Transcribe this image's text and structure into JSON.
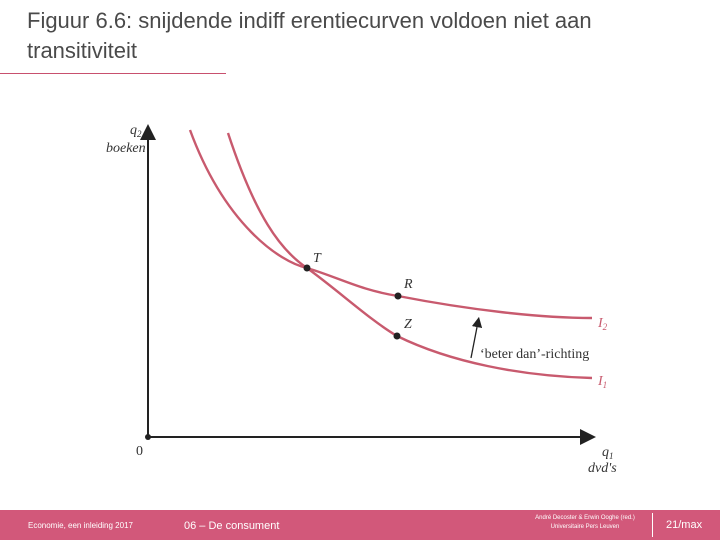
{
  "header": {
    "title": "Figuur 6.6: snijdende indiff erentiecurven voldoen niet aan transitiviteit"
  },
  "diagram": {
    "y_axis": {
      "symbol": "q",
      "subscript": "2",
      "name": "boeken"
    },
    "x_axis": {
      "symbol": "q",
      "subscript": "1",
      "name": "dvd's"
    },
    "origin": "0",
    "points": [
      "T",
      "R",
      "Z"
    ],
    "curves": [
      {
        "symbol": "I",
        "subscript": "2"
      },
      {
        "symbol": "I",
        "subscript": "1"
      }
    ],
    "annotation": "‘beter dan’-richting"
  },
  "footer": {
    "left": "Economie, een inleiding 2017",
    "chapter": "06 – De consument",
    "authors": "André Decoster & Erwin Ooghe (red.)",
    "publisher": "Universitaire Pers Leuven",
    "page": "21/max"
  }
}
